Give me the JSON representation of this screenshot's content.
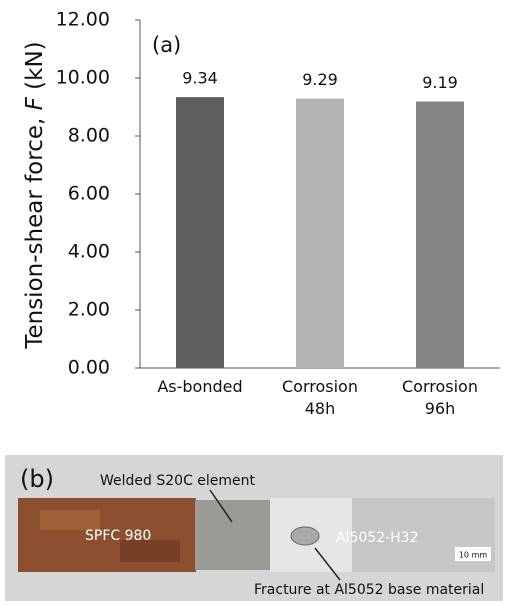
{
  "chart_data": {
    "type": "bar",
    "annotation": "(a)",
    "y_label": {
      "text": "Tension-shear force,",
      "symbol": "F",
      "unit": "(kN)"
    },
    "categories": [
      "As-bonded",
      "Corrosion 48h",
      "Corrosion 96h"
    ],
    "values": [
      9.34,
      9.29,
      9.19
    ],
    "colors": [
      "#5e5e5e",
      "#b3b3b3",
      "#858585"
    ],
    "ylim": [
      0,
      12
    ],
    "yticks": [
      {
        "value": 0,
        "label": "0.00"
      },
      {
        "value": 2,
        "label": "2.00"
      },
      {
        "value": 4,
        "label": "4.00"
      },
      {
        "value": 6,
        "label": "6.00"
      },
      {
        "value": 8,
        "label": "8.00"
      },
      {
        "value": 10,
        "label": "10.00"
      },
      {
        "value": 12,
        "label": "12.00"
      }
    ],
    "grid": false
  },
  "photo_panel": {
    "label": "(b)",
    "welded_label": "Welded S20C element",
    "steel_label": "SPFC 980",
    "aluminum_label": "Al5052-H32",
    "scale_label": "10 mm",
    "fracture_label": "Fracture at Al5052 base material"
  }
}
